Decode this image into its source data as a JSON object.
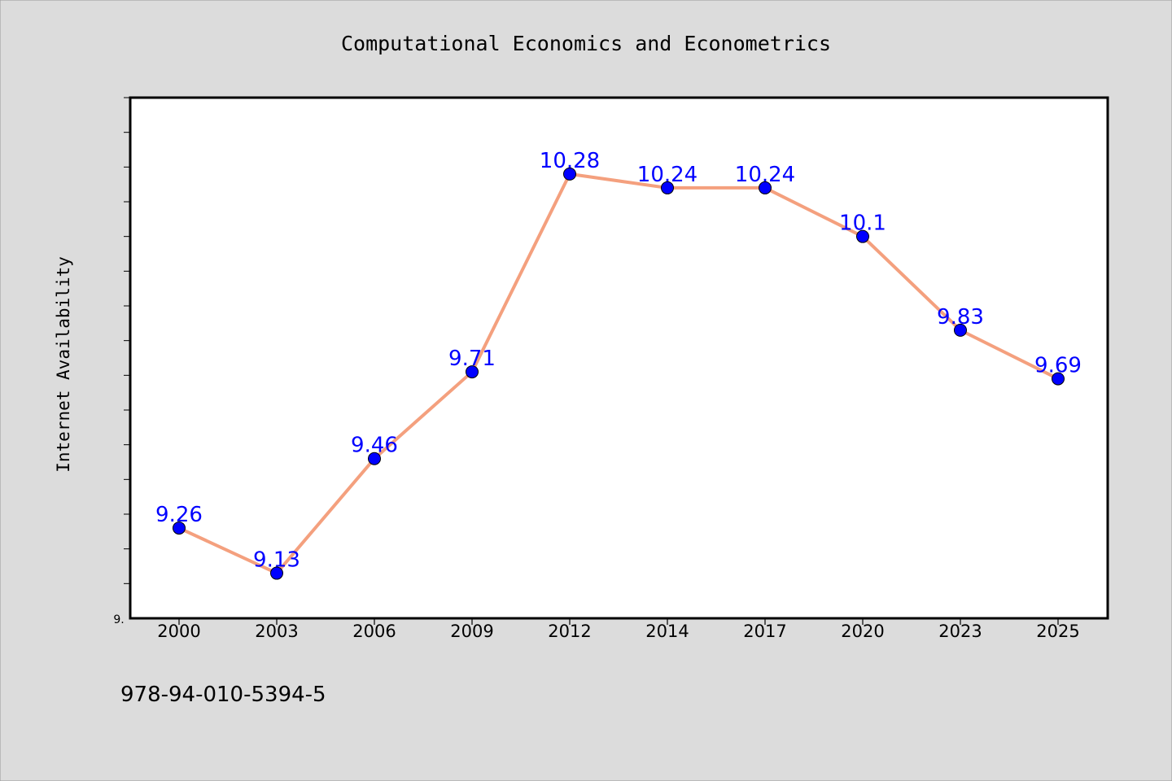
{
  "chart_data": {
    "type": "line",
    "title": "Computational Economics and Econometrics",
    "xlabel": "",
    "ylabel": "Internet Availability",
    "categories": [
      "2000",
      "2003",
      "2006",
      "2009",
      "2012",
      "2014",
      "2017",
      "2020",
      "2023",
      "2025"
    ],
    "series": [
      {
        "values": [
          9.26,
          9.13,
          9.46,
          9.71,
          10.28,
          10.24,
          10.24,
          10.1,
          9.83,
          9.69
        ],
        "data_labels": [
          "9.26",
          "9.13",
          "9.46",
          "9.71",
          "10.28",
          "10.24",
          "10.24",
          "10.1",
          "9.83",
          "9.69"
        ]
      }
    ],
    "ylim": [
      9.0,
      10.5
    ],
    "y_tick_label": "9.",
    "grid": false,
    "legend": "none",
    "colors": {
      "background": "#dcdcdc",
      "plot_background": "#ffffff",
      "line": "#f4a07e",
      "marker": "#0000ff",
      "data_label": "#0000ff",
      "text": "#000000"
    }
  },
  "footer": {
    "isbn": "978-94-010-5394-5"
  }
}
